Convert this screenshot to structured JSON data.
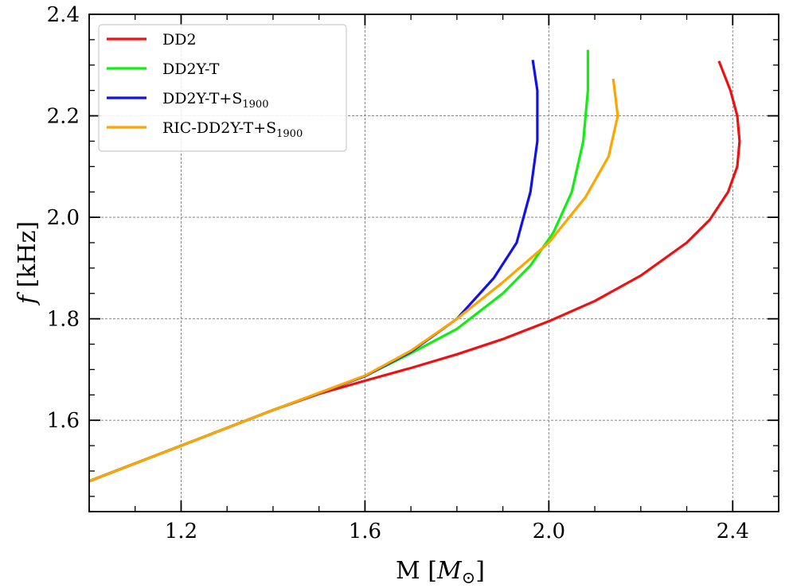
{
  "chart_data": {
    "type": "line",
    "title": "",
    "xlabel_main": "M [",
    "xlabel_symbol": "M",
    "xlabel_sub": "⊙",
    "xlabel_close": "]",
    "ylabel_italic": "f",
    "ylabel_rest": " [kHz]",
    "xlim": [
      1.0,
      2.5
    ],
    "ylim": [
      1.42,
      2.4
    ],
    "x_ticks": [
      1.2,
      1.6,
      2.0,
      2.4
    ],
    "x_tick_labels": [
      "1.2",
      "1.6",
      "2.0",
      "2.4"
    ],
    "y_ticks": [
      1.6,
      1.8,
      2.0,
      2.2,
      2.4
    ],
    "y_tick_labels": [
      "1.6",
      "1.8",
      "2.0",
      "2.2",
      "2.4"
    ],
    "x_minor_step": 0.1,
    "y_minor_step": 0.05,
    "grid": true,
    "legend_position": "top-left",
    "series": [
      {
        "name": "DD2",
        "name_sub": "",
        "color": "#ee1111",
        "points": [
          [
            1.0,
            1.48
          ],
          [
            1.1,
            1.515
          ],
          [
            1.2,
            1.55
          ],
          [
            1.3,
            1.585
          ],
          [
            1.4,
            1.62
          ],
          [
            1.5,
            1.652
          ],
          [
            1.6,
            1.678
          ],
          [
            1.7,
            1.703
          ],
          [
            1.8,
            1.73
          ],
          [
            1.9,
            1.76
          ],
          [
            2.0,
            1.795
          ],
          [
            2.1,
            1.835
          ],
          [
            2.2,
            1.885
          ],
          [
            2.3,
            1.95
          ],
          [
            2.35,
            1.995
          ],
          [
            2.39,
            2.05
          ],
          [
            2.41,
            2.1
          ],
          [
            2.415,
            2.15
          ],
          [
            2.41,
            2.2
          ],
          [
            2.395,
            2.25
          ],
          [
            2.37,
            2.308
          ]
        ]
      },
      {
        "name": "DD2Y-T",
        "name_sub": "",
        "color": "#11ee11",
        "points": [
          [
            1.0,
            1.48
          ],
          [
            1.2,
            1.55
          ],
          [
            1.4,
            1.62
          ],
          [
            1.6,
            1.687
          ],
          [
            1.7,
            1.732
          ],
          [
            1.8,
            1.78
          ],
          [
            1.9,
            1.85
          ],
          [
            1.96,
            1.905
          ],
          [
            2.01,
            1.97
          ],
          [
            2.05,
            2.05
          ],
          [
            2.075,
            2.15
          ],
          [
            2.085,
            2.25
          ],
          [
            2.085,
            2.33
          ]
        ]
      },
      {
        "name": "DD2Y-T+S",
        "name_sub": "1900",
        "color": "#1111ee",
        "points": [
          [
            1.0,
            1.48
          ],
          [
            1.2,
            1.55
          ],
          [
            1.4,
            1.62
          ],
          [
            1.6,
            1.687
          ],
          [
            1.7,
            1.735
          ],
          [
            1.8,
            1.8
          ],
          [
            1.88,
            1.88
          ],
          [
            1.93,
            1.95
          ],
          [
            1.96,
            2.05
          ],
          [
            1.975,
            2.15
          ],
          [
            1.975,
            2.25
          ],
          [
            1.965,
            2.31
          ]
        ]
      },
      {
        "name": "RIC-DD2Y-T+S",
        "name_sub": "1900",
        "color": "#ffa500",
        "points": [
          [
            1.0,
            1.48
          ],
          [
            1.2,
            1.55
          ],
          [
            1.4,
            1.62
          ],
          [
            1.6,
            1.688
          ],
          [
            1.7,
            1.737
          ],
          [
            1.8,
            1.8
          ],
          [
            1.9,
            1.872
          ],
          [
            2.0,
            1.95
          ],
          [
            2.08,
            2.04
          ],
          [
            2.13,
            2.12
          ],
          [
            2.15,
            2.2
          ],
          [
            2.14,
            2.273
          ]
        ]
      }
    ]
  }
}
